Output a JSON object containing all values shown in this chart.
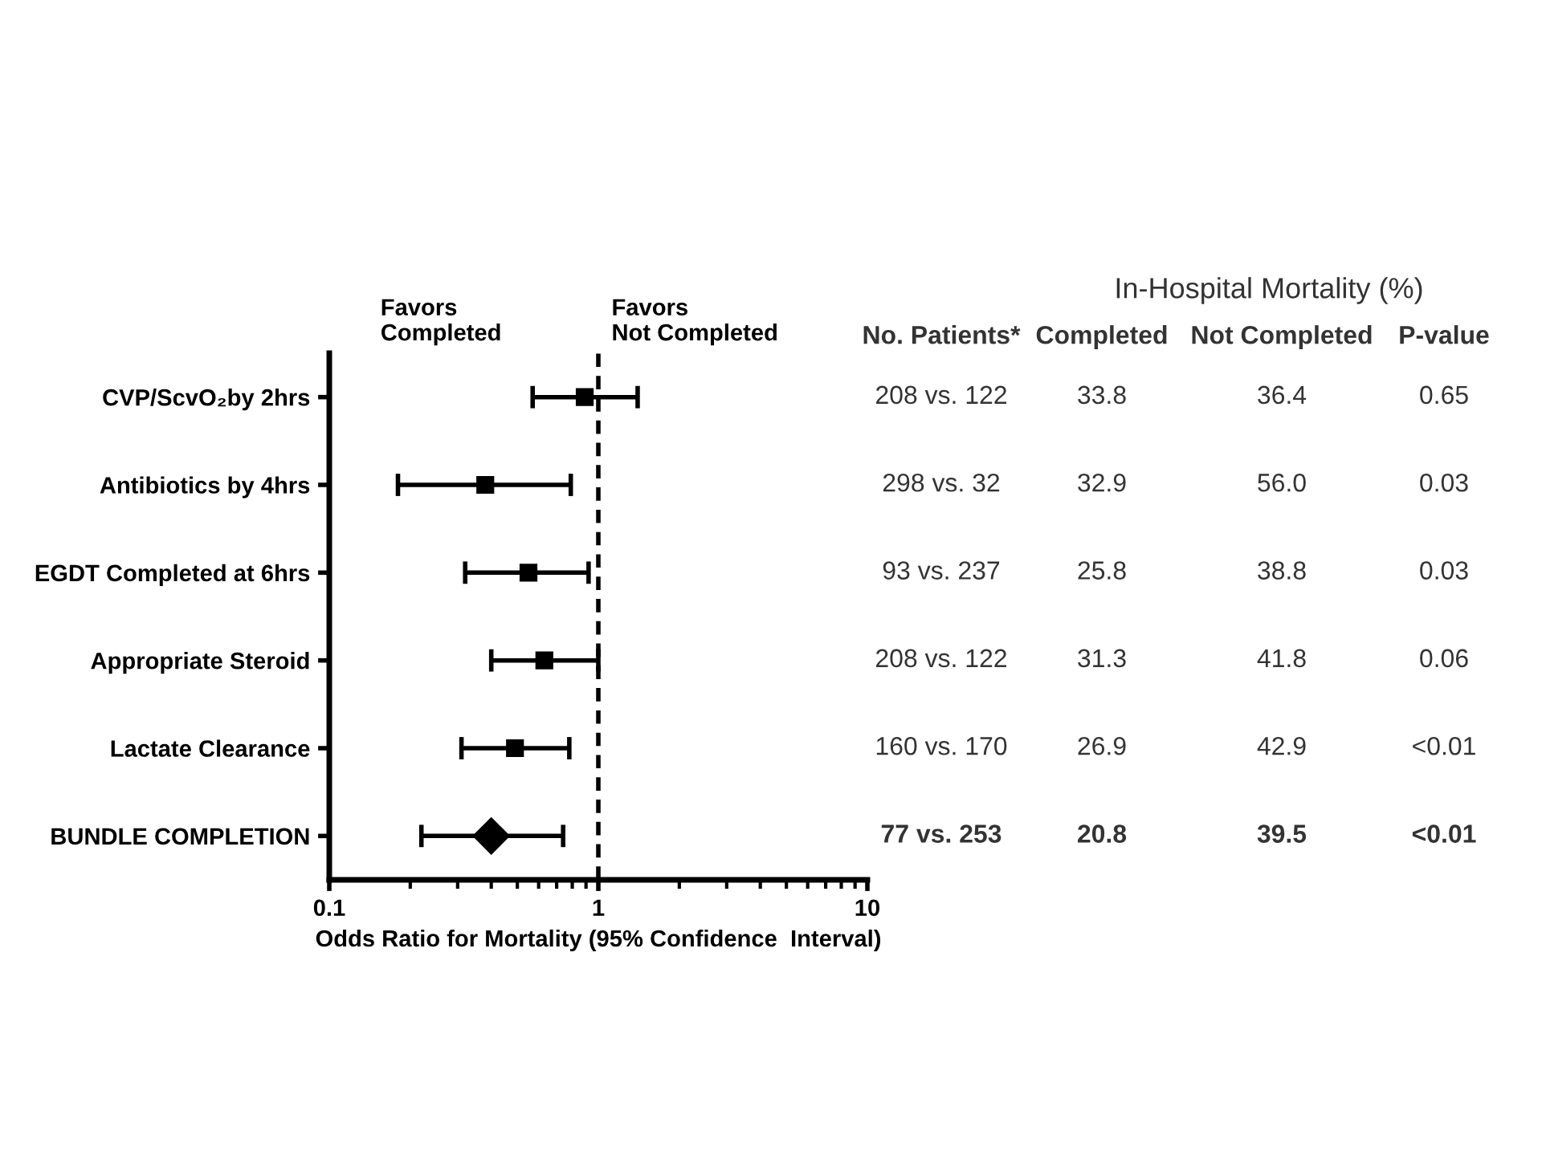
{
  "chart_data": {
    "type": "scatter",
    "orientation": "horizontal",
    "categories": [
      "CVP/ScvO₂by 2hrs",
      "Antibiotics by 4hrs",
      "EGDT Completed at 6hrs",
      "Appropriate Steroid",
      "Lactate Clearance",
      "BUNDLE COMPLETION"
    ],
    "series": [
      {
        "color": "#000000",
        "marker": "square",
        "values": [
          0.89,
          0.38,
          0.55,
          0.63,
          0.49,
          null
        ],
        "errors": [
          [
            0.57,
            1.4
          ],
          [
            0.18,
            0.79
          ],
          [
            0.32,
            0.92
          ],
          [
            0.4,
            1.0
          ],
          [
            0.31,
            0.78
          ],
          null
        ]
      },
      {
        "color": "#000000",
        "marker": "diamond",
        "values": [
          null,
          null,
          null,
          null,
          null,
          0.4
        ],
        "errors": [
          null,
          null,
          null,
          null,
          null,
          [
            0.22,
            0.74
          ]
        ]
      }
    ],
    "xlabel": "Odds Ratio for Mortality (95% Confidence  Interval)",
    "log": "x",
    "xlim": [
      0.1,
      10
    ],
    "xticks": [
      0.1,
      1,
      10
    ],
    "grid": false,
    "ref_lines": [
      {
        "axis": "x",
        "value": 1,
        "line_style": "dashed",
        "color": "#000000"
      }
    ],
    "annotations": [
      "Favors\nCompleted",
      "Favors\nNot Completed",
      "In-Hospital Mortality (%)",
      "No. Patients*",
      "Completed",
      "Not Completed",
      "P-value",
      "208 vs. 122",
      "33.8",
      "36.4",
      "0.65",
      "298 vs. 32",
      "32.9",
      "56.0",
      "0.03",
      "93 vs. 237",
      "25.8",
      "38.8",
      "0.03",
      "208 vs. 122",
      "31.3",
      "41.8",
      "0.06",
      "160 vs. 170",
      "26.9",
      "42.9",
      "<0.01",
      "77 vs. 253",
      "20.8",
      "39.5",
      "<0.01"
    ]
  }
}
